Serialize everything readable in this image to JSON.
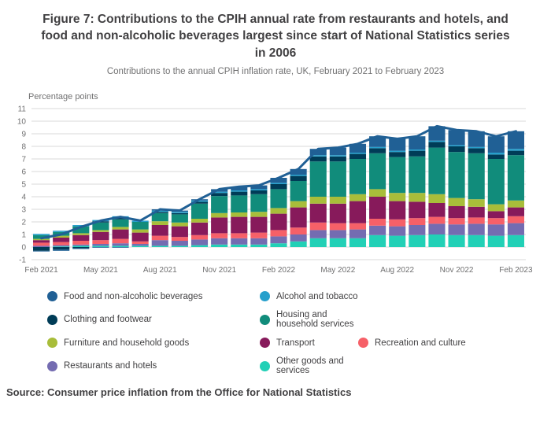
{
  "title": "Figure 7: Contributions to the CPIH annual rate from restaurants and hotels, and food and non-alcoholic beverages largest since start of National Statistics series in 2006",
  "subtitle": "Contributions to the annual CPIH inflation rate, UK, February 2021 to February 2023",
  "axis_unit_label": "Percentage points",
  "source": "Source: Consumer price inflation from the Office for National Statistics",
  "chart_data": {
    "type": "bar",
    "stacked": true,
    "grid": true,
    "legend_position": "bottom",
    "ylim": [
      -1,
      11
    ],
    "y_tick_step": 1,
    "categories": [
      "Feb 2021",
      "Mar 2021",
      "Apr 2021",
      "May 2021",
      "Jun 2021",
      "Jul 2021",
      "Aug 2021",
      "Sep 2021",
      "Oct 2021",
      "Nov 2021",
      "Dec 2021",
      "Jan 2022",
      "Feb 2022",
      "Mar 2022",
      "Apr 2022",
      "May 2022",
      "Jun 2022",
      "Jul 2022",
      "Aug 2022",
      "Sep 2022",
      "Oct 2022",
      "Nov 2022",
      "Dec 2022",
      "Jan 2023",
      "Feb 2023"
    ],
    "x_tick_labels": [
      "Feb 2021",
      "May 2021",
      "Aug 2021",
      "Nov 2021",
      "Feb 2022",
      "May 2022",
      "Aug 2022",
      "Nov 2022",
      "Feb 2023"
    ],
    "x_tick_every": 3,
    "series": [
      {
        "name": "Food and non-alcoholic beverages",
        "color": "#206095",
        "values": [
          -0.05,
          -0.1,
          -0.05,
          -0.05,
          -0.05,
          0.0,
          0.1,
          0.1,
          0.1,
          0.2,
          0.3,
          0.3,
          0.4,
          0.45,
          0.5,
          0.6,
          0.7,
          0.85,
          0.95,
          1.05,
          1.15,
          1.2,
          1.25,
          1.3,
          1.4
        ]
      },
      {
        "name": "Alcohol and tobacco",
        "color": "#27A0CC",
        "values": [
          0.1,
          0.1,
          0.1,
          0.1,
          0.1,
          0.1,
          0.1,
          0.1,
          0.1,
          0.1,
          0.1,
          0.1,
          0.1,
          0.1,
          0.1,
          0.1,
          0.1,
          0.1,
          0.1,
          0.1,
          0.1,
          0.1,
          0.1,
          0.15,
          0.15
        ]
      },
      {
        "name": "Clothing and footwear",
        "color": "#003C57",
        "values": [
          -0.3,
          -0.2,
          -0.1,
          0.1,
          0.15,
          0.0,
          0.1,
          0.1,
          0.15,
          0.25,
          0.3,
          0.3,
          0.4,
          0.4,
          0.4,
          0.4,
          0.4,
          0.4,
          0.4,
          0.45,
          0.45,
          0.45,
          0.4,
          0.35,
          0.35
        ]
      },
      {
        "name": "Housing and household services",
        "color": "#118C7B",
        "values": [
          0.3,
          0.3,
          0.55,
          0.6,
          0.6,
          0.6,
          0.65,
          0.65,
          1.2,
          1.35,
          1.35,
          1.4,
          1.5,
          1.6,
          2.8,
          2.8,
          2.8,
          2.85,
          2.85,
          2.9,
          3.7,
          3.65,
          3.65,
          3.6,
          3.6
        ]
      },
      {
        "name": "Furniture and household goods",
        "color": "#A8BD3A",
        "values": [
          0.1,
          0.15,
          0.15,
          0.15,
          0.2,
          0.25,
          0.3,
          0.3,
          0.3,
          0.35,
          0.35,
          0.4,
          0.45,
          0.5,
          0.55,
          0.55,
          0.55,
          0.6,
          0.65,
          0.7,
          0.7,
          0.65,
          0.6,
          0.55,
          0.55
        ]
      },
      {
        "name": "Transport",
        "color": "#871A5B",
        "values": [
          0.2,
          0.35,
          0.45,
          0.65,
          0.75,
          0.7,
          0.85,
          0.85,
          1.0,
          1.25,
          1.3,
          1.25,
          1.3,
          1.6,
          1.5,
          1.55,
          1.75,
          1.75,
          1.45,
          1.3,
          1.1,
          0.95,
          0.85,
          0.55,
          0.7
        ]
      },
      {
        "name": "Recreation and culture",
        "color": "#F66068",
        "values": [
          0.25,
          0.25,
          0.3,
          0.3,
          0.35,
          0.2,
          0.35,
          0.3,
          0.35,
          0.4,
          0.4,
          0.45,
          0.5,
          0.55,
          0.6,
          0.55,
          0.5,
          0.55,
          0.55,
          0.55,
          0.55,
          0.5,
          0.5,
          0.5,
          0.55
        ]
      },
      {
        "name": "Restaurants and hotels",
        "color": "#746CB1",
        "values": [
          0.1,
          0.1,
          0.1,
          0.15,
          0.2,
          0.15,
          0.45,
          0.4,
          0.45,
          0.5,
          0.5,
          0.5,
          0.55,
          0.55,
          0.65,
          0.65,
          0.7,
          0.75,
          0.75,
          0.8,
          0.85,
          0.85,
          0.9,
          0.9,
          0.95
        ]
      },
      {
        "name": "Other goods and services",
        "color": "#22D0B6",
        "values": [
          0.0,
          0.05,
          0.1,
          0.1,
          0.1,
          0.1,
          0.1,
          0.1,
          0.15,
          0.2,
          0.2,
          0.2,
          0.3,
          0.45,
          0.7,
          0.7,
          0.7,
          0.95,
          0.9,
          0.95,
          1.0,
          0.95,
          0.95,
          0.9,
          0.95
        ]
      }
    ],
    "line": {
      "color": "#206095",
      "values": [
        0.7,
        1.0,
        1.6,
        2.1,
        2.4,
        2.1,
        3.0,
        2.9,
        3.8,
        4.6,
        4.8,
        4.9,
        5.5,
        6.2,
        7.8,
        7.9,
        8.2,
        8.8,
        8.6,
        8.8,
        9.6,
        9.3,
        9.2,
        8.8,
        9.2
      ]
    }
  }
}
